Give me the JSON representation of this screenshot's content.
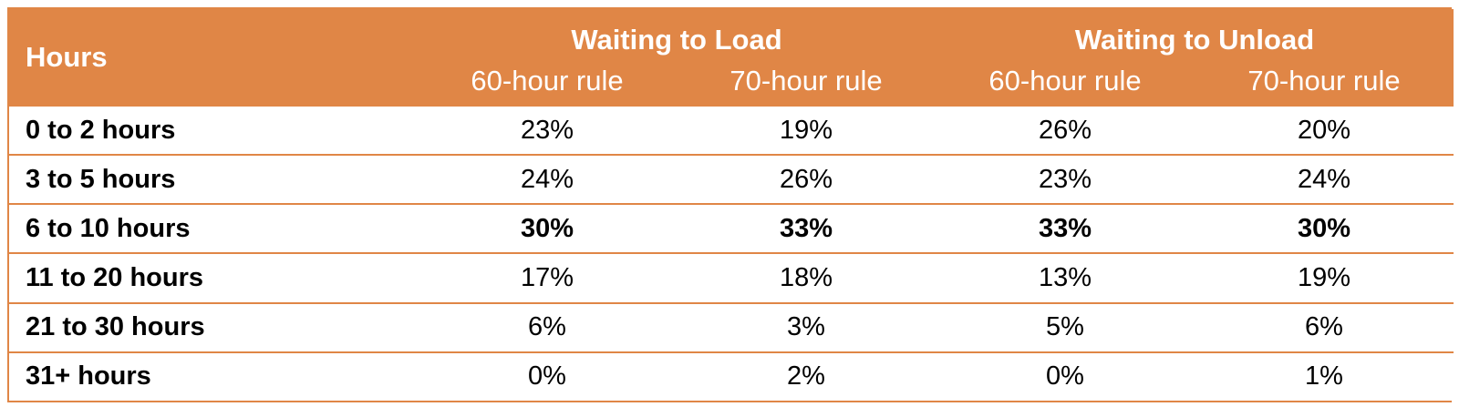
{
  "chart_data": {
    "type": "table",
    "header": {
      "row_label": "Hours",
      "groups": [
        "Waiting to Load",
        "Waiting to Unload"
      ],
      "columns": [
        "60-hour rule",
        "70-hour rule",
        "60-hour rule",
        "70-hour rule"
      ]
    },
    "rows": [
      {
        "label": "0 to 2 hours",
        "values": [
          "23%",
          "19%",
          "26%",
          "20%"
        ],
        "bold": false
      },
      {
        "label": "3 to 5 hours",
        "values": [
          "24%",
          "26%",
          "23%",
          "24%"
        ],
        "bold": false
      },
      {
        "label": "6 to 10 hours",
        "values": [
          "30%",
          "33%",
          "33%",
          "30%"
        ],
        "bold": true
      },
      {
        "label": "11 to 20 hours",
        "values": [
          "17%",
          "18%",
          "13%",
          "19%"
        ],
        "bold": false
      },
      {
        "label": "21 to 30 hours",
        "values": [
          "6%",
          "3%",
          "5%",
          "6%"
        ],
        "bold": false
      },
      {
        "label": "31+ hours",
        "values": [
          "0%",
          "2%",
          "0%",
          "1%"
        ],
        "bold": false
      }
    ],
    "colors": {
      "header_bg": "#e08646",
      "header_text": "#ffffff",
      "border": "#e08646"
    }
  }
}
